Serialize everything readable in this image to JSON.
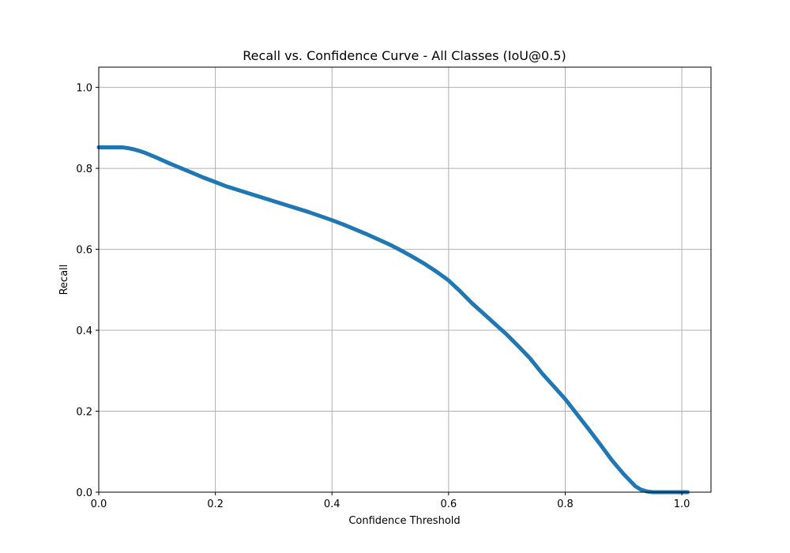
{
  "colors": {
    "series": "#1f77b4",
    "grid": "#b0b0b0",
    "background": "#ffffff"
  },
  "chart_data": {
    "type": "line",
    "title": "Recall vs. Confidence Curve - All Classes (IoU@0.5)",
    "xlabel": "Confidence Threshold",
    "ylabel": "Recall",
    "xlim": [
      0.0,
      1.05
    ],
    "ylim": [
      0.0,
      1.05
    ],
    "xticks": [
      0.0,
      0.2,
      0.4,
      0.6,
      0.8,
      1.0
    ],
    "xtick_labels": [
      "0.0",
      "0.2",
      "0.4",
      "0.6",
      "0.8",
      "1.0"
    ],
    "yticks": [
      0.0,
      0.2,
      0.4,
      0.6,
      0.8,
      1.0
    ],
    "ytick_labels": [
      "0.0",
      "0.2",
      "0.4",
      "0.6",
      "0.8",
      "1.0"
    ],
    "grid": true,
    "legend": false,
    "series": [
      {
        "x": [
          0.0,
          0.03,
          0.04,
          0.05,
          0.06,
          0.07,
          0.08,
          0.09,
          0.1,
          0.12,
          0.14,
          0.16,
          0.18,
          0.2,
          0.22,
          0.24,
          0.26,
          0.28,
          0.3,
          0.32,
          0.34,
          0.36,
          0.38,
          0.4,
          0.42,
          0.44,
          0.46,
          0.48,
          0.5,
          0.52,
          0.54,
          0.56,
          0.58,
          0.6,
          0.62,
          0.64,
          0.66,
          0.68,
          0.7,
          0.72,
          0.74,
          0.76,
          0.78,
          0.8,
          0.82,
          0.84,
          0.86,
          0.88,
          0.9,
          0.92,
          0.93,
          0.94,
          0.95,
          0.96,
          0.98,
          1.0,
          1.01
        ],
        "y": [
          0.852,
          0.852,
          0.852,
          0.85,
          0.847,
          0.843,
          0.838,
          0.832,
          0.826,
          0.813,
          0.801,
          0.789,
          0.777,
          0.766,
          0.755,
          0.746,
          0.737,
          0.728,
          0.719,
          0.71,
          0.701,
          0.692,
          0.682,
          0.672,
          0.661,
          0.649,
          0.637,
          0.624,
          0.611,
          0.596,
          0.58,
          0.563,
          0.544,
          0.523,
          0.496,
          0.467,
          0.441,
          0.415,
          0.389,
          0.36,
          0.33,
          0.294,
          0.262,
          0.23,
          0.193,
          0.156,
          0.118,
          0.079,
          0.045,
          0.015,
          0.006,
          0.002,
          0.0,
          0.0,
          0.0,
          0.0,
          0.0
        ]
      }
    ]
  }
}
